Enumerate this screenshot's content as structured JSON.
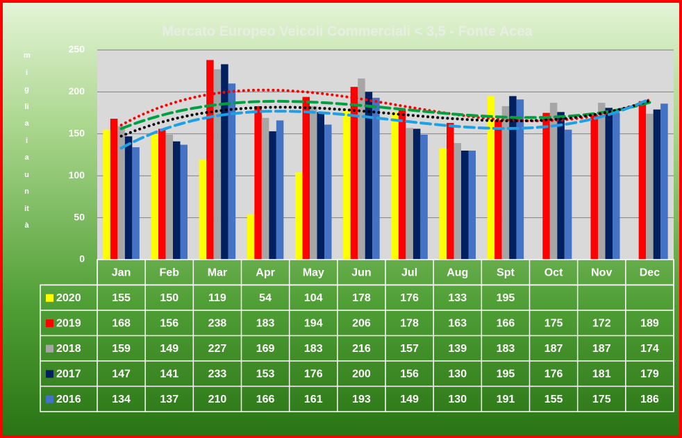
{
  "chart_data": {
    "type": "bar",
    "title": "Mercato Europeo Veicoli Commerciali < 3,5 - Fonte Acea",
    "y_label": "migliaia unità",
    "categories": [
      "Jan",
      "Feb",
      "Mar",
      "Apr",
      "May",
      "Jun",
      "Jul",
      "Aug",
      "Spt",
      "Oct",
      "Nov",
      "Dec"
    ],
    "series": [
      {
        "name": "2020",
        "color": "#ffff00",
        "values": [
          155,
          150,
          119,
          54,
          104,
          178,
          176,
          133,
          195,
          null,
          null,
          null
        ]
      },
      {
        "name": "2019",
        "color": "#ff0000",
        "values": [
          168,
          156,
          238,
          183,
          194,
          206,
          178,
          163,
          166,
          175,
          172,
          189
        ]
      },
      {
        "name": "2018",
        "color": "#a6a6a6",
        "values": [
          159,
          149,
          227,
          169,
          183,
          216,
          157,
          139,
          183,
          187,
          187,
          174
        ]
      },
      {
        "name": "2017",
        "color": "#002060",
        "values": [
          147,
          141,
          233,
          153,
          176,
          200,
          156,
          130,
          195,
          176,
          181,
          179
        ]
      },
      {
        "name": "2016",
        "color": "#4472c4",
        "values": [
          134,
          137,
          210,
          166,
          161,
          193,
          149,
          130,
          191,
          155,
          175,
          186
        ]
      }
    ],
    "trendlines": [
      {
        "series": 1,
        "color": "#ff0000",
        "dash": "dot"
      },
      {
        "series": 2,
        "color": "#00a040",
        "dash": "dash"
      },
      {
        "series": 3,
        "color": "#000000",
        "dash": "dot"
      },
      {
        "series": 4,
        "color": "#1ea0e6",
        "dash": "dash"
      }
    ],
    "ylim": [
      0,
      250
    ],
    "yticks": [
      0,
      50,
      100,
      150,
      200,
      250
    ],
    "grid": true,
    "data_table": true
  }
}
